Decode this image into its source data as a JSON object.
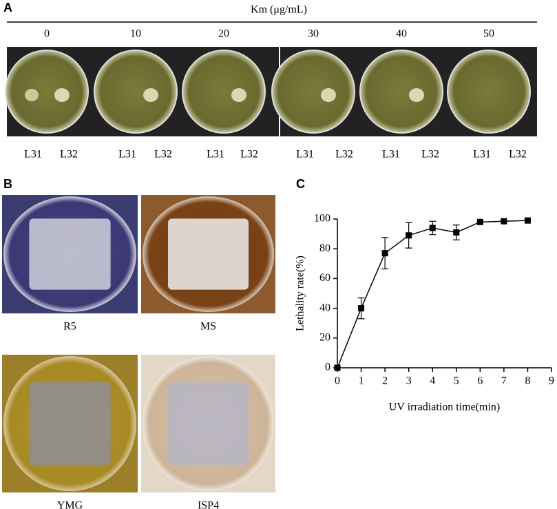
{
  "panel_a": {
    "label": "A",
    "title": "Km (μg/mL)",
    "wells": [
      {
        "concentration": "0",
        "strains": [
          "L31",
          "L32"
        ]
      },
      {
        "concentration": "10",
        "strains": [
          "L31",
          "L32"
        ]
      },
      {
        "concentration": "20",
        "strains": [
          "L31",
          "L32"
        ]
      },
      {
        "concentration": "30",
        "strains": [
          "L31",
          "L32"
        ]
      },
      {
        "concentration": "40",
        "strains": [
          "L31",
          "L32"
        ]
      },
      {
        "concentration": "50",
        "strains": [
          "L31",
          "L32"
        ]
      }
    ]
  },
  "panel_b": {
    "label": "B",
    "media": [
      "R5",
      "MS",
      "YMG",
      "ISP4"
    ]
  },
  "panel_c": {
    "label": "C"
  },
  "chart_data": {
    "type": "line",
    "x": [
      0,
      1,
      2,
      3,
      4,
      5,
      6,
      7,
      8
    ],
    "values": [
      0,
      40,
      77,
      89,
      94,
      91,
      98,
      98.5,
      99
    ],
    "errors": [
      0,
      7,
      10.5,
      8.5,
      4.5,
      5,
      0,
      0,
      0
    ],
    "color": "#000000",
    "xlabel": "UV irradiation time(min)",
    "ylabel": "Lethality rate(%)",
    "xlim": [
      0,
      9
    ],
    "xticks": [
      0,
      1,
      2,
      3,
      4,
      5,
      6,
      7,
      8,
      9
    ],
    "ylim": [
      0,
      100
    ],
    "yticks": [
      0,
      20,
      40,
      60,
      80,
      100
    ]
  }
}
